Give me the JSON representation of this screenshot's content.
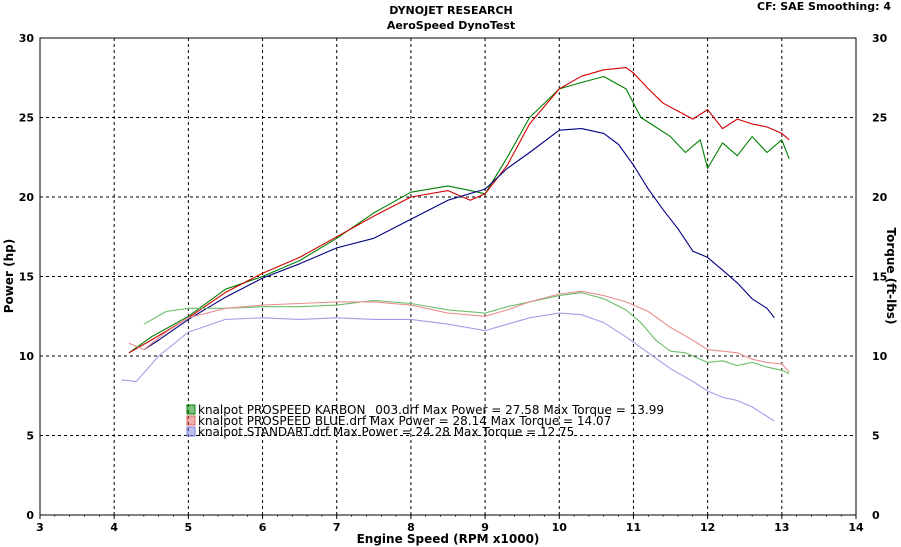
{
  "header": {
    "title": "DYNOJET RESEARCH",
    "subtitle": "AeroSpeed DynoTest",
    "settings": "CF: SAE  Smoothing: 4"
  },
  "chart_data": {
    "type": "line",
    "xlabel": "Engine Speed (RPM x1000)",
    "ylabel_left": "Power (hp)",
    "ylabel_right": "Torque (ft-lbs)",
    "xlim": [
      3,
      14
    ],
    "ylim_left": [
      0,
      30
    ],
    "ylim_right": [
      0,
      30
    ],
    "x_ticks": [
      3,
      4,
      5,
      6,
      7,
      8,
      9,
      10,
      11,
      12,
      13,
      14
    ],
    "y_ticks": [
      0,
      5,
      10,
      15,
      20,
      25,
      30
    ],
    "grid": true,
    "legend_placement": "center-left",
    "legend": [
      {
        "text": "knalpot PROSPEED KARBON _003.drf Max Power = 27.58     Max Torque = 13.99",
        "color": "#008000"
      },
      {
        "text": "knalpot PROSPEED BLUE.drf Max Power = 28.14     Max Torque = 14.07",
        "color": "#e06060"
      },
      {
        "text": "knalpot STANDART.drf Max Power = 24.28     Max Torque = 12.75",
        "color": "#8080e0"
      }
    ],
    "series": [
      {
        "name": "knalpot PROSPEED KARBON _003.drf",
        "kind": "power",
        "color": "#008000",
        "x": [
          4.2,
          4.5,
          5.0,
          5.5,
          6.0,
          6.5,
          7.0,
          7.5,
          8.0,
          8.5,
          8.8,
          9.0,
          9.3,
          9.6,
          10.0,
          10.3,
          10.6,
          10.9,
          11.1,
          11.3,
          11.5,
          11.7,
          11.9,
          12.0,
          12.2,
          12.4,
          12.6,
          12.8,
          13.0,
          13.1
        ],
        "y": [
          10.2,
          11.2,
          12.5,
          14.2,
          15.0,
          16.0,
          17.4,
          19.0,
          20.3,
          20.7,
          20.4,
          20.2,
          22.5,
          25.0,
          26.8,
          27.2,
          27.58,
          26.8,
          25.0,
          24.4,
          23.8,
          22.8,
          23.6,
          21.8,
          23.4,
          22.6,
          23.8,
          22.8,
          23.6,
          22.4
        ]
      },
      {
        "name": "knalpot PROSPEED BLUE.drf",
        "kind": "power",
        "color": "#d00000",
        "x": [
          4.2,
          4.5,
          5.0,
          5.5,
          6.0,
          6.5,
          7.0,
          7.5,
          8.0,
          8.5,
          8.8,
          9.0,
          9.3,
          9.6,
          10.0,
          10.3,
          10.6,
          10.9,
          11.0,
          11.2,
          11.4,
          11.6,
          11.8,
          12.0,
          12.2,
          12.4,
          12.6,
          12.8,
          13.0,
          13.1
        ],
        "y": [
          10.2,
          11.0,
          12.4,
          14.0,
          15.2,
          16.2,
          17.5,
          18.8,
          20.0,
          20.4,
          19.8,
          20.2,
          22.0,
          24.6,
          26.8,
          27.6,
          28.0,
          28.14,
          27.8,
          26.8,
          25.9,
          25.4,
          24.9,
          25.5,
          24.3,
          24.9,
          24.6,
          24.4,
          24.0,
          23.6
        ]
      },
      {
        "name": "knalpot STANDART.drf",
        "kind": "power",
        "color": "#000080",
        "x": [
          4.4,
          4.6,
          5.0,
          5.5,
          6.0,
          6.5,
          7.0,
          7.5,
          8.0,
          8.5,
          9.0,
          9.3,
          9.6,
          10.0,
          10.3,
          10.6,
          10.8,
          11.0,
          11.2,
          11.4,
          11.6,
          11.8,
          12.0,
          12.2,
          12.4,
          12.6,
          12.8,
          12.9
        ],
        "y": [
          10.4,
          11.0,
          12.3,
          13.7,
          14.9,
          15.8,
          16.8,
          17.4,
          18.6,
          19.8,
          20.5,
          21.8,
          22.8,
          24.2,
          24.3,
          24.0,
          23.3,
          22.0,
          20.5,
          19.2,
          18.0,
          16.6,
          16.2,
          15.4,
          14.6,
          13.6,
          13.0,
          12.4
        ]
      },
      {
        "name": "knalpot PROSPEED KARBON _003.drf",
        "kind": "torque",
        "color": "#6abf6a",
        "x": [
          4.4,
          4.7,
          5.0,
          5.5,
          6.0,
          6.5,
          7.0,
          7.5,
          8.0,
          8.5,
          9.0,
          9.3,
          9.6,
          10.0,
          10.3,
          10.6,
          10.9,
          11.1,
          11.3,
          11.5,
          11.7,
          11.9,
          12.0,
          12.2,
          12.4,
          12.6,
          12.8,
          13.0,
          13.1
        ],
        "y": [
          12.0,
          12.8,
          13.0,
          13.0,
          13.1,
          13.1,
          13.2,
          13.5,
          13.3,
          12.9,
          12.7,
          13.1,
          13.4,
          13.8,
          13.99,
          13.6,
          12.9,
          12.1,
          11.0,
          10.3,
          10.2,
          9.8,
          9.6,
          9.7,
          9.4,
          9.6,
          9.3,
          9.1,
          8.9
        ]
      },
      {
        "name": "knalpot PROSPEED BLUE.drf",
        "kind": "torque",
        "color": "#e89090",
        "x": [
          4.2,
          4.4,
          4.7,
          5.0,
          5.5,
          6.0,
          6.5,
          7.0,
          7.5,
          8.0,
          8.5,
          9.0,
          9.3,
          9.6,
          10.0,
          10.3,
          10.6,
          10.9,
          11.2,
          11.5,
          11.8,
          12.0,
          12.2,
          12.4,
          12.6,
          12.8,
          13.0,
          13.1
        ],
        "y": [
          10.8,
          10.4,
          11.5,
          12.4,
          13.0,
          13.2,
          13.3,
          13.4,
          13.4,
          13.2,
          12.7,
          12.5,
          12.9,
          13.4,
          13.9,
          14.07,
          13.8,
          13.4,
          12.8,
          11.8,
          11.0,
          10.4,
          10.3,
          10.2,
          9.8,
          9.6,
          9.5,
          9.0
        ]
      },
      {
        "name": "knalpot STANDART.drf",
        "kind": "torque",
        "color": "#a0a0e8",
        "x": [
          4.1,
          4.3,
          4.6,
          5.0,
          5.5,
          6.0,
          6.5,
          7.0,
          7.5,
          8.0,
          8.5,
          9.0,
          9.3,
          9.6,
          10.0,
          10.3,
          10.6,
          10.9,
          11.2,
          11.5,
          11.8,
          12.0,
          12.2,
          12.4,
          12.6,
          12.8,
          12.9
        ],
        "y": [
          8.5,
          8.4,
          10.0,
          11.5,
          12.3,
          12.4,
          12.3,
          12.4,
          12.3,
          12.3,
          12.0,
          11.6,
          12.0,
          12.4,
          12.7,
          12.6,
          12.1,
          11.2,
          10.2,
          9.2,
          8.4,
          7.8,
          7.4,
          7.2,
          6.8,
          6.2,
          5.9
        ]
      }
    ]
  }
}
